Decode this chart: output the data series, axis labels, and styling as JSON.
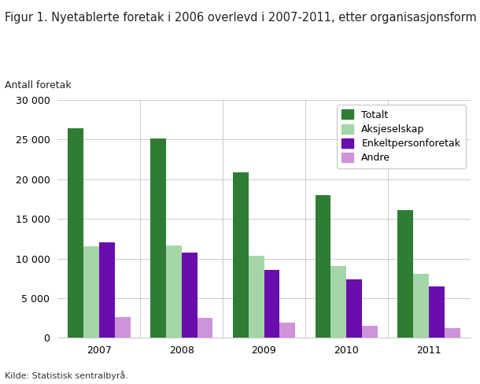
{
  "title": "Figur 1. Nyetablerte foretak i 2006 overlevd i 2007-2011, etter organisasjonsform",
  "ylabel": "Antall foretak",
  "source": "Kilde: Statistisk sentralbyrå.",
  "years": [
    "2007",
    "2008",
    "2009",
    "2010",
    "2011"
  ],
  "series": {
    "Totalt": [
      26400,
      25100,
      20900,
      18000,
      16100
    ],
    "Aksjeselskap": [
      11500,
      11600,
      10400,
      9100,
      8100
    ],
    "Enkeltpersonforetak": [
      12000,
      10800,
      8600,
      7400,
      6500
    ],
    "Andre": [
      2600,
      2500,
      1900,
      1500,
      1200
    ]
  },
  "colors": {
    "Totalt": "#2e7d32",
    "Aksjeselskap": "#a5d6a7",
    "Enkeltpersonforetak": "#6a0dad",
    "Andre": "#ce93d8"
  },
  "ylim": [
    0,
    30000
  ],
  "yticks": [
    0,
    5000,
    10000,
    15000,
    20000,
    25000,
    30000
  ],
  "ytick_labels": [
    "0",
    "5 000",
    "10 000",
    "15 000",
    "20 000",
    "25 000",
    "30 000"
  ],
  "bar_width": 0.19,
  "background_color": "#ffffff",
  "plot_background_color": "#ffffff",
  "grid_color": "#cccccc",
  "title_fontsize": 10.5,
  "label_fontsize": 9,
  "tick_fontsize": 9,
  "legend_fontsize": 9,
  "source_fontsize": 8
}
